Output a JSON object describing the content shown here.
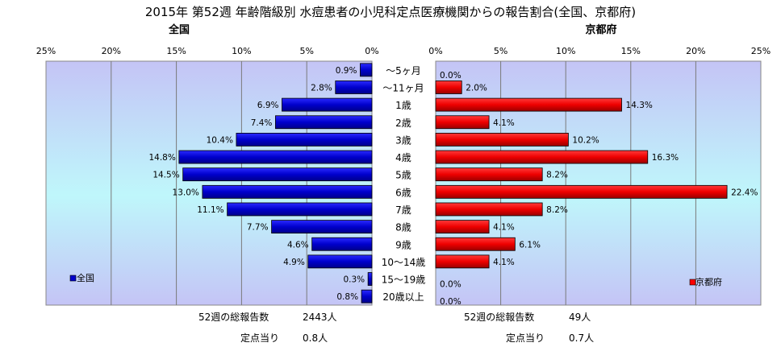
{
  "title": "2015年 第52週 年齢階級別 水痘患者の小児科定点医療機関からの報告割合(全国、京都府)",
  "chart_data": [
    {
      "type": "bar",
      "orientation": "horizontal",
      "direction": "right-to-left",
      "title": "全国",
      "xlim": [
        0,
        25
      ],
      "x_ticks": [
        "25%",
        "20%",
        "15%",
        "10%",
        "5%",
        "0%"
      ],
      "categories": [
        "～5ヶ月",
        "～11ヶ月",
        "1歳",
        "2歳",
        "3歳",
        "4歳",
        "5歳",
        "6歳",
        "7歳",
        "8歳",
        "9歳",
        "10～14歳",
        "15～19歳",
        "20歳以上"
      ],
      "series": [
        {
          "name": "全国",
          "color": "#0000cc",
          "values": [
            0.9,
            2.8,
            6.9,
            7.4,
            10.4,
            14.8,
            14.5,
            13.0,
            11.1,
            7.7,
            4.6,
            4.9,
            0.3,
            0.8
          ],
          "labels": [
            "0.9%",
            "2.8%",
            "6.9%",
            "7.4%",
            "10.4%",
            "14.8%",
            "14.5%",
            "13.0%",
            "11.1%",
            "7.7%",
            "4.6%",
            "4.9%",
            "0.3%",
            "0.8%"
          ]
        }
      ],
      "legend": "bottom-left",
      "grid": true,
      "footer": [
        {
          "label": "52週の総報告数",
          "value": "2443人"
        },
        {
          "label": "定点当り",
          "value": "0.8人"
        }
      ]
    },
    {
      "type": "bar",
      "orientation": "horizontal",
      "direction": "left-to-right",
      "title": "京都府",
      "xlim": [
        0,
        25
      ],
      "x_ticks": [
        "0%",
        "5%",
        "10%",
        "15%",
        "20%",
        "25%"
      ],
      "categories": [
        "～5ヶ月",
        "～11ヶ月",
        "1歳",
        "2歳",
        "3歳",
        "4歳",
        "5歳",
        "6歳",
        "7歳",
        "8歳",
        "9歳",
        "10～14歳",
        "15～19歳",
        "20歳以上"
      ],
      "series": [
        {
          "name": "京都府",
          "color": "#ff0000",
          "values": [
            0.0,
            2.0,
            14.3,
            4.1,
            10.2,
            16.3,
            8.2,
            22.4,
            8.2,
            4.1,
            6.1,
            4.1,
            0.0,
            0.0
          ],
          "labels": [
            "0.0%",
            "2.0%",
            "14.3%",
            "4.1%",
            "10.2%",
            "16.3%",
            "8.2%",
            "22.4%",
            "8.2%",
            "4.1%",
            "6.1%",
            "4.1%",
            "0.0%",
            "0.0%"
          ]
        }
      ],
      "legend": "bottom-right",
      "grid": true,
      "footer": [
        {
          "label": "52週の総報告数",
          "value": "49人"
        },
        {
          "label": "定点当り",
          "value": "0.7人"
        }
      ]
    }
  ]
}
